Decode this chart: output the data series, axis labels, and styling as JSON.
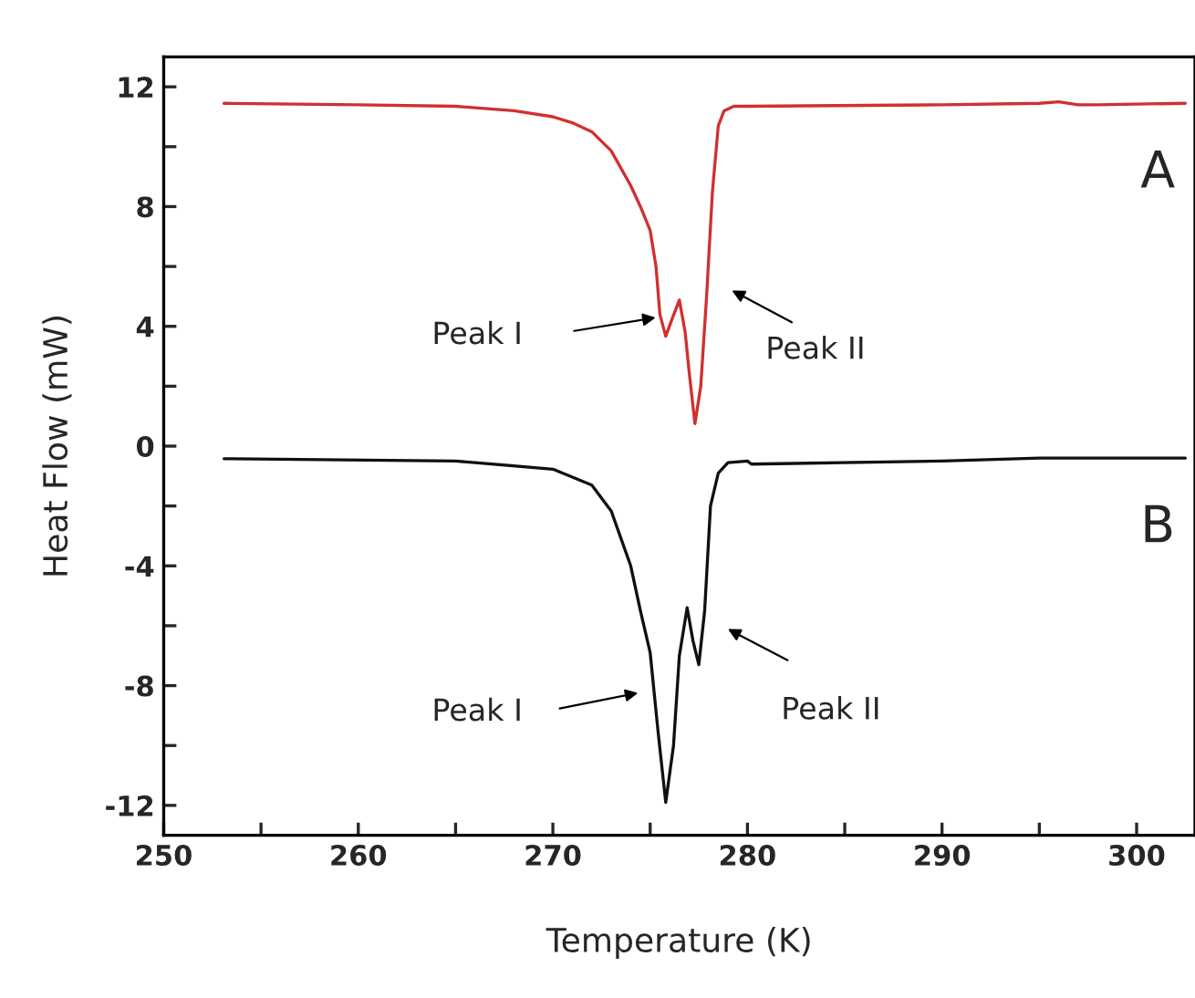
{
  "chart_data": {
    "type": "line",
    "xlabel": "Temperature (K)",
    "ylabel": "Heat Flow (mW)",
    "xlim": [
      250,
      303
    ],
    "ylim": [
      -13,
      13
    ],
    "xticks": [
      250,
      {
        "value": 255,
        "label": null
      },
      260,
      {
        "value": 265,
        "label": null
      },
      270,
      {
        "value": 275,
        "label": null
      },
      280,
      {
        "value": 285,
        "label": null
      },
      290,
      {
        "value": 295,
        "label": null
      },
      300
    ],
    "yticks": [
      -12,
      {
        "value": -10,
        "label": null
      },
      -8,
      {
        "value": -6,
        "label": null
      },
      -4,
      {
        "value": -2,
        "label": null
      },
      0,
      {
        "value": 2,
        "label": null
      },
      4,
      {
        "value": 6,
        "label": null
      },
      8,
      {
        "value": 10,
        "label": null
      },
      12
    ],
    "grid": false,
    "legend": false,
    "marker": "none",
    "line_style": "solid",
    "series": [
      {
        "name": "A",
        "color": "#d03030",
        "x": [
          253.1,
          260,
          265,
          268,
          270,
          271,
          272,
          273,
          274,
          274.5,
          275,
          275.3,
          275.5,
          275.8,
          276.1,
          276.5,
          276.8,
          277.0,
          277.3,
          277.6,
          277.9,
          278.2,
          278.5,
          278.8,
          279.3,
          280,
          290,
          295,
          296,
          297,
          298,
          302.5
        ],
        "values": [
          11.45,
          11.4,
          11.35,
          11.2,
          11.0,
          10.8,
          10.5,
          9.86,
          8.7,
          8.0,
          7.2,
          6.0,
          4.4,
          3.67,
          4.2,
          4.88,
          3.8,
          2.5,
          0.75,
          2.0,
          5.0,
          8.5,
          10.7,
          11.2,
          11.35,
          11.35,
          11.4,
          11.45,
          11.5,
          11.4,
          11.4,
          11.45
        ]
      },
      {
        "name": "B",
        "color": "#101010",
        "x": [
          253.1,
          265,
          266,
          270,
          272,
          273,
          274,
          274.5,
          275,
          275.4,
          275.8,
          276.2,
          276.5,
          276.9,
          277.2,
          277.5,
          277.8,
          278.1,
          278.5,
          279,
          280,
          280.2,
          290,
          295,
          302.5
        ],
        "values": [
          -0.42,
          -0.5,
          -0.55,
          -0.77,
          -1.3,
          -2.17,
          -4.0,
          -5.5,
          -6.9,
          -9.5,
          -11.9,
          -10.0,
          -7.0,
          -5.4,
          -6.5,
          -7.3,
          -5.5,
          -2.0,
          -0.9,
          -0.55,
          -0.5,
          -0.6,
          -0.5,
          -0.4,
          -0.4
        ]
      }
    ],
    "annotations": [
      "Peak I",
      "Peak II",
      "Peak I",
      "Peak II"
    ]
  }
}
